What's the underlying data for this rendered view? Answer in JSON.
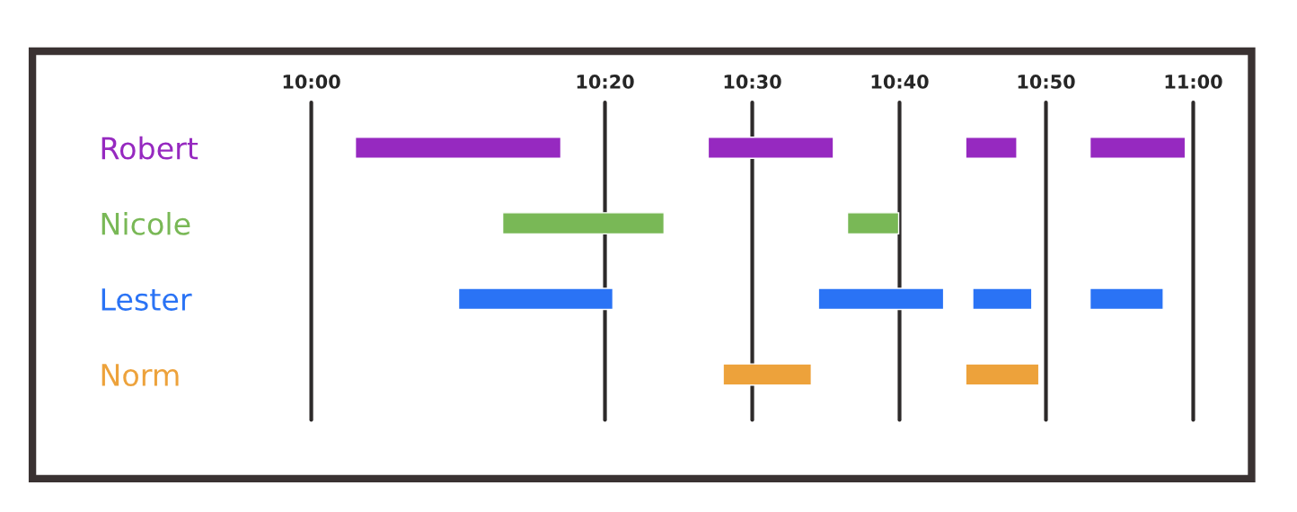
{
  "chart_data": {
    "type": "bar",
    "orientation": "horizontal",
    "categories": [
      "Robert",
      "Nicole",
      "Lester",
      "Norm"
    ],
    "series": [
      {
        "colors": [
          "#9629c0",
          "#79b856",
          "#2a73f5",
          "#eda23b"
        ],
        "base": [
          10.05,
          10.217,
          10.167,
          10.467
        ],
        "values": [
          0.233,
          0.183,
          0.175,
          0.1
        ]
      },
      {
        "colors": [
          "#9629c0",
          "#79b856",
          "#2a73f5",
          "#eda23b"
        ],
        "base": [
          10.45,
          10.608,
          10.575,
          10.742
        ],
        "values": [
          0.142,
          0.058,
          0.142,
          0.083
        ]
      },
      {
        "colors": [
          "#9629c0",
          "#79b856",
          "#2a73f5",
          "#eda23b"
        ],
        "base": [
          10.742,
          null,
          10.75,
          null
        ],
        "values": [
          0.058,
          null,
          0.067,
          null
        ]
      },
      {
        "colors": [
          "#9629c0",
          "#79b856",
          "#2a73f5",
          "#eda23b"
        ],
        "base": [
          10.883,
          null,
          10.883,
          null
        ],
        "values": [
          0.108,
          null,
          0.083,
          null
        ]
      }
    ],
    "xlim": [
      10,
      11
    ],
    "xticks": [
      {
        "value": 10,
        "label": "10:00"
      },
      {
        "value": 10.333,
        "label": "10:20"
      },
      {
        "value": 10.5,
        "label": "10:30"
      },
      {
        "value": 10.667,
        "label": "10:40"
      },
      {
        "value": 10.833,
        "label": "10:50"
      },
      {
        "value": 11,
        "label": "11:00"
      }
    ],
    "grid": "x"
  }
}
